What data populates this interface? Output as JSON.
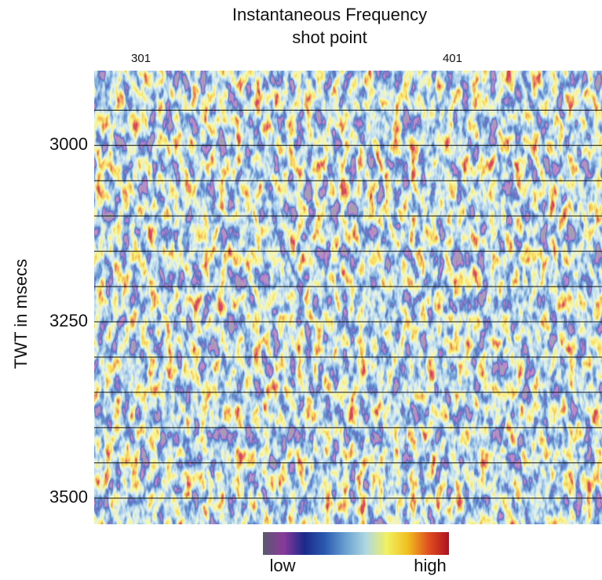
{
  "chart_data": {
    "type": "image",
    "title": "Instantaneous Frequency",
    "x_label": "shot point",
    "y_label": "TWT in msecs",
    "xlim": [
      286,
      449
    ],
    "xticks": [
      301,
      401
    ],
    "ylim": [
      2894,
      3537
    ],
    "y_inverted": true,
    "yticks": [
      3000,
      3250,
      3500
    ],
    "gridlines": [
      2950,
      3000,
      3050,
      3100,
      3150,
      3200,
      3250,
      3300,
      3350,
      3400,
      3450,
      3500
    ],
    "colormap": [
      "#5a5a6e",
      "#8a3a9a",
      "#1a2a8a",
      "#2a5ab0",
      "#6aa0d0",
      "#b0d8e0",
      "#f0f060",
      "#f0c020",
      "#e05020",
      "#b01020"
    ],
    "colorbar_labels": [
      "low",
      "high"
    ]
  }
}
